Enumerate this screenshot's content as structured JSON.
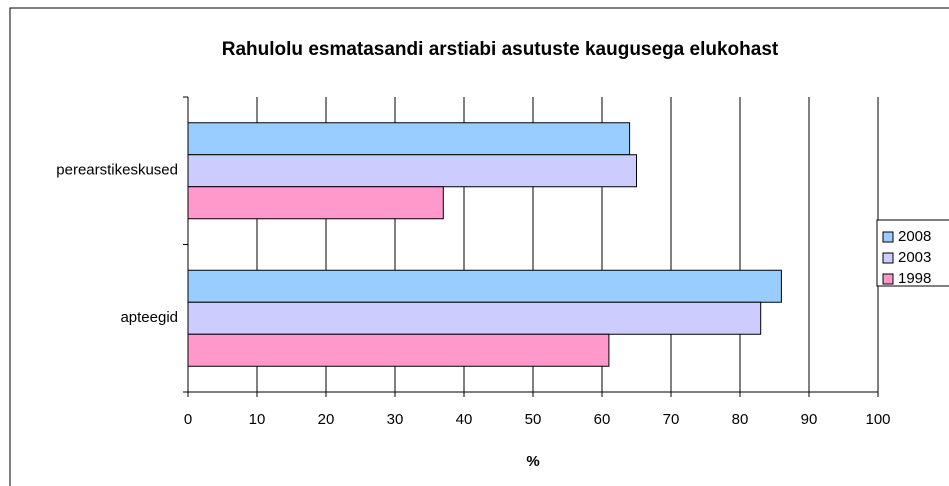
{
  "chart_data": {
    "type": "bar",
    "orientation": "horizontal",
    "title": "Rahulolu esmatasandi arstiabi asutuste kaugusega elukohast",
    "x_label": "%",
    "categories": [
      "perearstikeskused",
      "apteegid"
    ],
    "series": [
      {
        "name": "2008",
        "color": "#99ccff",
        "values": [
          64,
          86
        ]
      },
      {
        "name": "2003",
        "color": "#ccccff",
        "values": [
          65,
          83
        ]
      },
      {
        "name": "1998",
        "color": "#ff99cc",
        "values": [
          37,
          61
        ]
      }
    ],
    "xlim": [
      0,
      100
    ],
    "xticks": [
      0,
      10,
      20,
      30,
      40,
      50,
      60,
      70,
      80,
      90,
      100
    ],
    "grid": true,
    "legend": "right"
  }
}
